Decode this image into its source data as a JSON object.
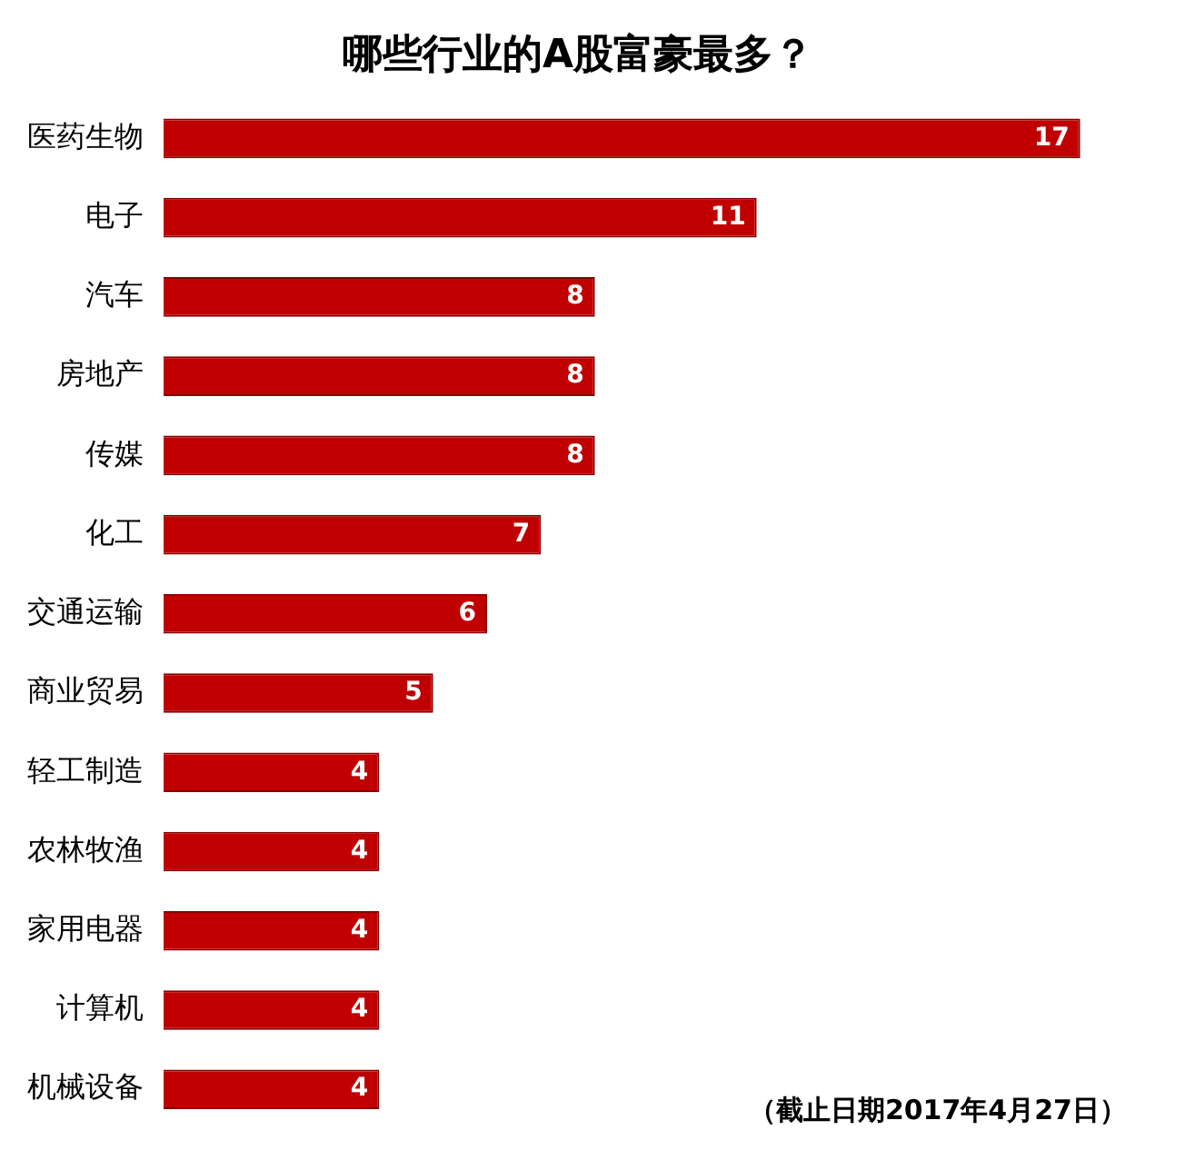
{
  "chart_data": {
    "type": "bar",
    "title": "哪些行业的A股富豪最多？",
    "orientation": "horizontal",
    "categories": [
      "医药生物",
      "电子",
      "汽车",
      "房地产",
      "传媒",
      "化工",
      "交通运输",
      "商业贸易",
      "轻工制造",
      "农林牧渔",
      "家用电器",
      "计算机",
      "机械设备"
    ],
    "values": [
      17,
      11,
      8,
      8,
      8,
      7,
      6,
      5,
      4,
      4,
      4,
      4,
      4
    ],
    "color": "#c00000",
    "data_labels": true,
    "grid": false,
    "legend": false,
    "annotations": [
      "（截止日期2017年4月27日）"
    ]
  }
}
